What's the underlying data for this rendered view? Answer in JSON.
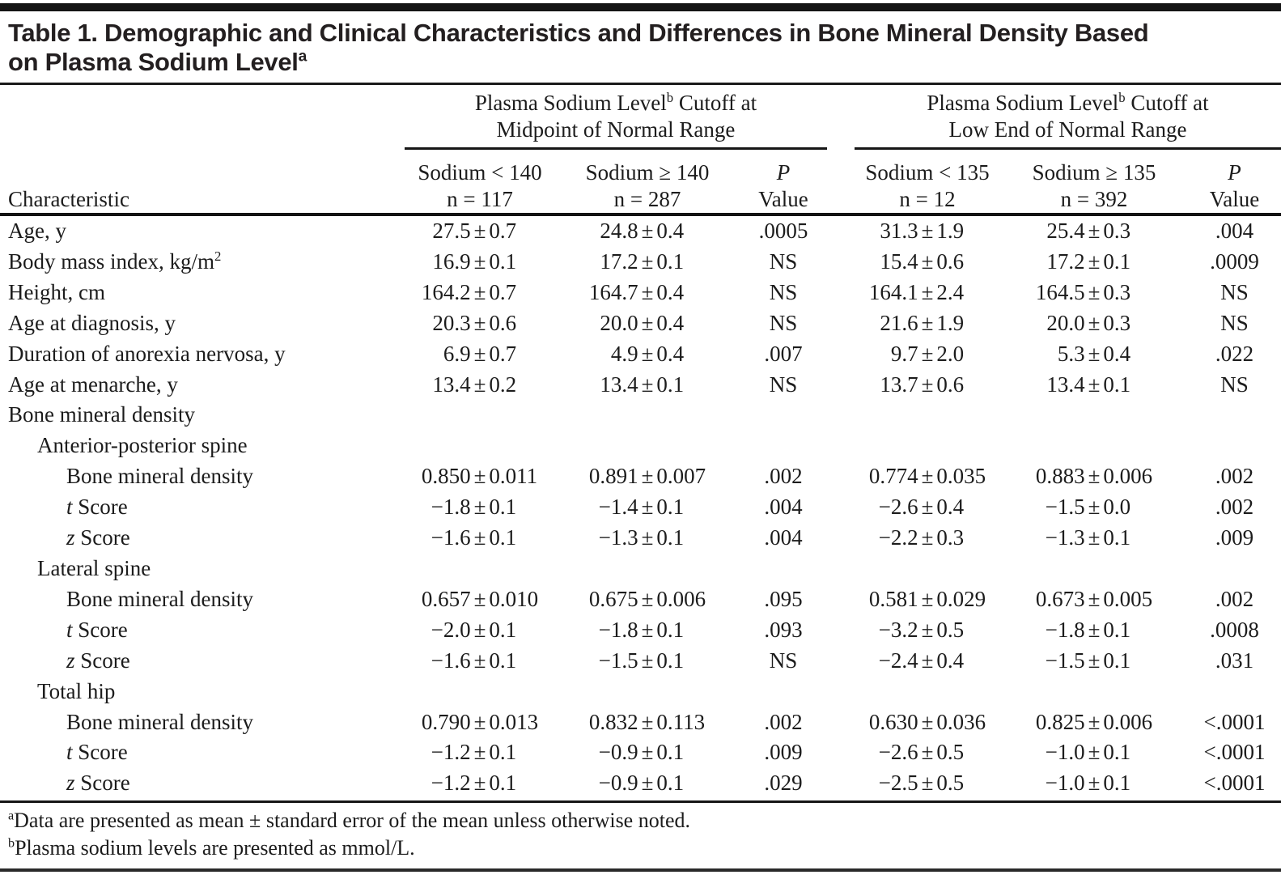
{
  "title": {
    "line1": "Table 1. Demographic and Clinical Characteristics and Differences in Bone Mineral Density Based",
    "line2": "on Plasma Sodium Level",
    "superscript": "a"
  },
  "header": {
    "characteristic_label": "Characteristic",
    "groups": [
      {
        "line1_pre": "Plasma Sodium Level",
        "line1_sup": "b",
        "line1_post": " Cutoff at",
        "line2": "Midpoint of Normal Range"
      },
      {
        "line1_pre": "Plasma Sodium Level",
        "line1_sup": "b",
        "line1_post": " Cutoff at",
        "line2": "Low End of Normal Range"
      }
    ],
    "columns": [
      {
        "line1": "Sodium < 140",
        "line2": "n = 117"
      },
      {
        "line1": "Sodium ≥ 140",
        "line2": "n = 287"
      },
      {
        "line1": "P",
        "line2": "Value"
      },
      {
        "line1": "Sodium < 135",
        "line2": "n = 12"
      },
      {
        "line1": "Sodium ≥ 135",
        "line2": "n = 392"
      },
      {
        "line1": "P",
        "line2": "Value"
      }
    ]
  },
  "rows": [
    {
      "label": "Age, y",
      "indent": 0,
      "cells": [
        "27.5±0.7",
        "24.8±0.4",
        ".0005",
        "31.3±1.9",
        "25.4±0.3",
        ".004"
      ]
    },
    {
      "label": "Body mass index, kg/m",
      "label_sup": "2",
      "indent": 0,
      "cells": [
        "16.9±0.1",
        "17.2±0.1",
        "NS",
        "15.4±0.6",
        "17.2±0.1",
        ".0009"
      ]
    },
    {
      "label": "Height, cm",
      "indent": 0,
      "cells": [
        "164.2±0.7",
        "164.7±0.4",
        "NS",
        "164.1±2.4",
        "164.5±0.3",
        "NS"
      ]
    },
    {
      "label": "Age at diagnosis, y",
      "indent": 0,
      "cells": [
        "20.3±0.6",
        "20.0±0.4",
        "NS",
        "21.6±1.9",
        "20.0±0.3",
        "NS"
      ]
    },
    {
      "label": "Duration of anorexia nervosa, y",
      "indent": 0,
      "cells": [
        "6.9±0.7",
        "4.9±0.4",
        ".007",
        "9.7±2.0",
        "5.3±0.4",
        ".022"
      ]
    },
    {
      "label": "Age at menarche, y",
      "indent": 0,
      "cells": [
        "13.4±0.2",
        "13.4±0.1",
        "NS",
        "13.7±0.6",
        "13.4±0.1",
        "NS"
      ]
    },
    {
      "label": "Bone mineral density",
      "indent": 0,
      "cells": [
        "",
        "",
        "",
        "",
        "",
        ""
      ]
    },
    {
      "label": "Anterior-posterior spine",
      "indent": 1,
      "cells": [
        "",
        "",
        "",
        "",
        "",
        ""
      ]
    },
    {
      "label": "Bone mineral density",
      "indent": 2,
      "cells": [
        "0.850±0.011",
        "0.891±0.007",
        ".002",
        "0.774±0.035",
        "0.883±0.006",
        ".002"
      ]
    },
    {
      "label_em": "t",
      "label": " Score",
      "indent": 2,
      "cells": [
        "−1.8±0.1",
        "−1.4±0.1",
        ".004",
        "−2.6±0.4",
        "−1.5±0.0",
        ".002"
      ]
    },
    {
      "label_em": "z",
      "label": " Score",
      "indent": 2,
      "cells": [
        "−1.6±0.1",
        "−1.3±0.1",
        ".004",
        "−2.2±0.3",
        "−1.3±0.1",
        ".009"
      ]
    },
    {
      "label": "Lateral spine",
      "indent": 1,
      "cells": [
        "",
        "",
        "",
        "",
        "",
        ""
      ]
    },
    {
      "label": "Bone mineral density",
      "indent": 2,
      "cells": [
        "0.657±0.010",
        "0.675±0.006",
        ".095",
        "0.581±0.029",
        "0.673±0.005",
        ".002"
      ]
    },
    {
      "label_em": "t",
      "label": " Score",
      "indent": 2,
      "cells": [
        "−2.0±0.1",
        "−1.8±0.1",
        ".093",
        "−3.2±0.5",
        "−1.8±0.1",
        ".0008"
      ]
    },
    {
      "label_em": "z",
      "label": " Score",
      "indent": 2,
      "cells": [
        "−1.6±0.1",
        "−1.5±0.1",
        "NS",
        "−2.4±0.4",
        "−1.5±0.1",
        ".031"
      ]
    },
    {
      "label": "Total hip",
      "indent": 1,
      "cells": [
        "",
        "",
        "",
        "",
        "",
        ""
      ]
    },
    {
      "label": "Bone mineral density",
      "indent": 2,
      "cells": [
        "0.790±0.013",
        "0.832±0.113",
        ".002",
        "0.630±0.036",
        "0.825±0.006",
        "<.0001"
      ]
    },
    {
      "label_em": "t",
      "label": " Score",
      "indent": 2,
      "cells": [
        "−1.2±0.1",
        "−0.9±0.1",
        ".009",
        "−2.6±0.5",
        "−1.0±0.1",
        "<.0001"
      ]
    },
    {
      "label_em": "z",
      "label": " Score",
      "indent": 2,
      "cells": [
        "−1.2±0.1",
        "−0.9±0.1",
        ".029",
        "−2.5±0.5",
        "−1.0±0.1",
        "<.0001"
      ]
    }
  ],
  "footnotes": [
    {
      "sup": "a",
      "text": "Data are presented as mean ± standard error of the mean unless otherwise noted."
    },
    {
      "sup": "b",
      "text": "Plasma sodium levels are presented as mmol/L."
    }
  ],
  "colors": {
    "text": "#1c1c1c",
    "rule": "#161616",
    "background": "#ffffff"
  }
}
